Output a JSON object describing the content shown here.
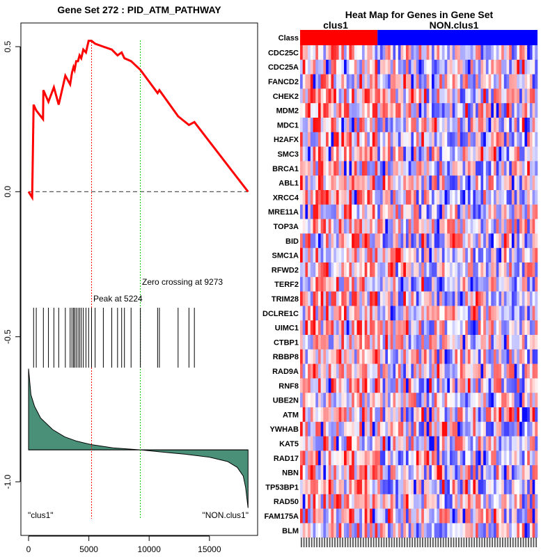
{
  "chart_data": [
    {
      "type": "line",
      "title": "Gene Set  272 : PID_ATM_PATHWAY",
      "xlim": [
        0,
        18300
      ],
      "ylim": [
        -1.15,
        0.6
      ],
      "x_ticks": [
        0,
        5000,
        10000,
        15000
      ],
      "y_ticks": [
        0.5,
        0.0,
        -0.5,
        -1.0
      ],
      "x_tick_labels": [
        "0",
        "5000",
        "10000",
        "15000"
      ],
      "y_tick_labels": [
        "0.5",
        "0.0",
        "-0.5",
        "-1.0"
      ],
      "peak_label": "Peak at 5224",
      "peak_x": 5224,
      "zero_label": "Zero crossing at 9273",
      "zero_x": 9273,
      "left_label": "\"clus1\"",
      "right_label": "\"NON.clus1\"",
      "colors": {
        "es": "#ff0000",
        "peak_line": "#ff0000",
        "zero_line": "#00cc00",
        "metric_fill": "#4a8f77"
      },
      "hit_positions": [
        420,
        640,
        1230,
        1650,
        2100,
        2500,
        3050,
        3450,
        3600,
        3730,
        3820,
        3950,
        4100,
        4230,
        4370,
        4540,
        4760,
        4980,
        5224,
        5520,
        6200,
        6900,
        7380,
        7720,
        7950,
        8500,
        9273,
        10700,
        10850,
        12400,
        13300,
        13750
      ],
      "es_points": [
        [
          0,
          0.0
        ],
        [
          300,
          -0.02
        ],
        [
          420,
          0.3
        ],
        [
          640,
          0.28
        ],
        [
          1200,
          0.25
        ],
        [
          1230,
          0.35
        ],
        [
          1650,
          0.31
        ],
        [
          2100,
          0.36
        ],
        [
          2500,
          0.3
        ],
        [
          3050,
          0.4
        ],
        [
          3450,
          0.37
        ],
        [
          3600,
          0.41
        ],
        [
          3730,
          0.43
        ],
        [
          3820,
          0.42
        ],
        [
          3950,
          0.45
        ],
        [
          4100,
          0.45
        ],
        [
          4230,
          0.47
        ],
        [
          4370,
          0.46
        ],
        [
          4540,
          0.49
        ],
        [
          4760,
          0.48
        ],
        [
          4980,
          0.52
        ],
        [
          5224,
          0.52
        ],
        [
          5520,
          0.51
        ],
        [
          6200,
          0.5
        ],
        [
          6900,
          0.49
        ],
        [
          7380,
          0.47
        ],
        [
          7720,
          0.48
        ],
        [
          7950,
          0.46
        ],
        [
          8500,
          0.45
        ],
        [
          9273,
          0.42
        ],
        [
          10700,
          0.34
        ],
        [
          10850,
          0.35
        ],
        [
          12400,
          0.26
        ],
        [
          13300,
          0.23
        ],
        [
          13750,
          0.24
        ],
        [
          18200,
          0.0
        ]
      ],
      "metric_points": [
        [
          0,
          -0.61
        ],
        [
          200,
          -0.7
        ],
        [
          500,
          -0.74
        ],
        [
          1000,
          -0.78
        ],
        [
          2000,
          -0.82
        ],
        [
          3000,
          -0.845
        ],
        [
          4000,
          -0.86
        ],
        [
          5224,
          -0.872
        ],
        [
          7000,
          -0.883
        ],
        [
          9273,
          -0.89
        ],
        [
          11000,
          -0.897
        ],
        [
          13000,
          -0.905
        ],
        [
          15000,
          -0.915
        ],
        [
          16500,
          -0.93
        ],
        [
          17300,
          -0.95
        ],
        [
          17800,
          -0.98
        ],
        [
          18000,
          -1.02
        ],
        [
          18200,
          -1.09
        ]
      ],
      "metric_zero": -0.89
    },
    {
      "type": "heatmap",
      "title": "Heat Map for Genes in Gene Set",
      "class_label": "Class",
      "group_labels": [
        "clus1",
        "NON.clus1"
      ],
      "group_colors": [
        "#ff0000",
        "#0000ff"
      ],
      "clus1_samples": 30,
      "non_clus1_samples": 62,
      "genes": [
        "CDC25C",
        "CDC25A",
        "FANCD2",
        "CHEK2",
        "MDM2",
        "MDC1",
        "H2AFX",
        "SMC3",
        "BRCA1",
        "ABL1",
        "XRCC4",
        "MRE11A",
        "TOP3A",
        "BID",
        "SMC1A",
        "RFWD2",
        "TERF2",
        "TRIM28",
        "DCLRE1C",
        "UIMC1",
        "CTBP1",
        "RBBP8",
        "RAD9A",
        "RNF8",
        "UBE2N",
        "ATM",
        "YWHAB",
        "KAT5",
        "RAD17",
        "NBN",
        "TP53BP1",
        "RAD50",
        "FAM175A",
        "BLM"
      ]
    }
  ]
}
